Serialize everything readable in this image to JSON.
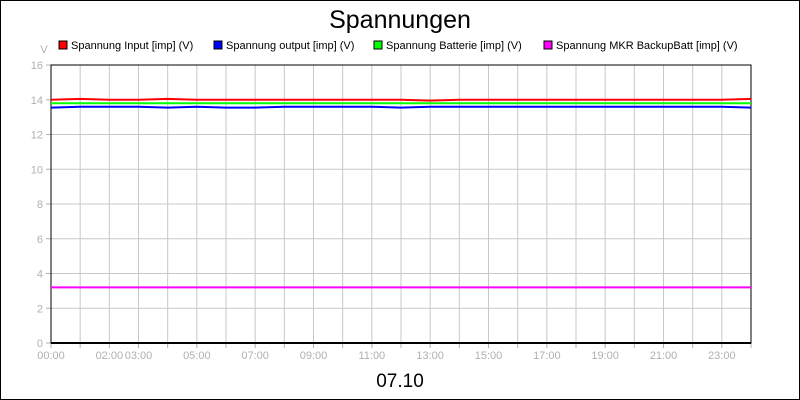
{
  "chart_data": {
    "type": "line",
    "title": "Spannungen",
    "ylabel": "V",
    "xlabel": "07.10",
    "ylim": [
      0,
      16
    ],
    "yticks": [
      "0",
      "2",
      "4",
      "6",
      "8",
      "10",
      "12",
      "14",
      "16"
    ],
    "xlim_hours": [
      0,
      24
    ],
    "xtick_labels": [
      {
        "hour": 0,
        "label": "00:00"
      },
      {
        "hour": 2,
        "label": "02:00"
      },
      {
        "hour": 3,
        "label": "03:00"
      },
      {
        "hour": 5,
        "label": "05:00"
      },
      {
        "hour": 7,
        "label": "07:00"
      },
      {
        "hour": 9,
        "label": "09:00"
      },
      {
        "hour": 11,
        "label": "11:00"
      },
      {
        "hour": 13,
        "label": "13:00"
      },
      {
        "hour": 15,
        "label": "15:00"
      },
      {
        "hour": 17,
        "label": "17:00"
      },
      {
        "hour": 19,
        "label": "19:00"
      },
      {
        "hour": 21,
        "label": "21:00"
      },
      {
        "hour": 23,
        "label": "23:00"
      }
    ],
    "grid": true,
    "legend_position": "top",
    "x_hours": [
      0,
      1,
      2,
      3,
      4,
      5,
      6,
      7,
      8,
      9,
      10,
      11,
      12,
      13,
      14,
      15,
      16,
      17,
      18,
      19,
      20,
      21,
      22,
      23,
      24
    ],
    "series": [
      {
        "name": "Spannung Input [imp] (V)",
        "color": "#ff0000",
        "values": [
          14.0,
          14.05,
          14.0,
          14.0,
          14.05,
          14.0,
          14.0,
          14.0,
          14.0,
          14.0,
          14.0,
          14.0,
          14.0,
          13.95,
          14.0,
          14.0,
          14.0,
          14.0,
          14.0,
          14.0,
          14.0,
          14.0,
          14.0,
          14.0,
          14.05
        ]
      },
      {
        "name": "Spannung output [imp] (V)",
        "color": "#0000ff",
        "values": [
          13.55,
          13.6,
          13.6,
          13.6,
          13.55,
          13.6,
          13.55,
          13.55,
          13.6,
          13.6,
          13.6,
          13.6,
          13.55,
          13.6,
          13.6,
          13.6,
          13.6,
          13.6,
          13.6,
          13.6,
          13.6,
          13.6,
          13.6,
          13.6,
          13.55
        ]
      },
      {
        "name": "Spannung Batterie [imp] (V)",
        "color": "#00ff00",
        "values": [
          13.8,
          13.8,
          13.8,
          13.8,
          13.8,
          13.8,
          13.8,
          13.8,
          13.8,
          13.8,
          13.8,
          13.8,
          13.8,
          13.8,
          13.8,
          13.8,
          13.8,
          13.8,
          13.8,
          13.8,
          13.8,
          13.8,
          13.8,
          13.8,
          13.8
        ]
      },
      {
        "name": "Spannung MKR BackupBatt [imp] (V)",
        "color": "#ff00ff",
        "values": [
          3.2,
          3.2,
          3.2,
          3.2,
          3.2,
          3.2,
          3.2,
          3.2,
          3.2,
          3.2,
          3.2,
          3.2,
          3.2,
          3.2,
          3.2,
          3.2,
          3.2,
          3.2,
          3.2,
          3.2,
          3.2,
          3.2,
          3.2,
          3.2,
          3.2
        ]
      }
    ]
  }
}
